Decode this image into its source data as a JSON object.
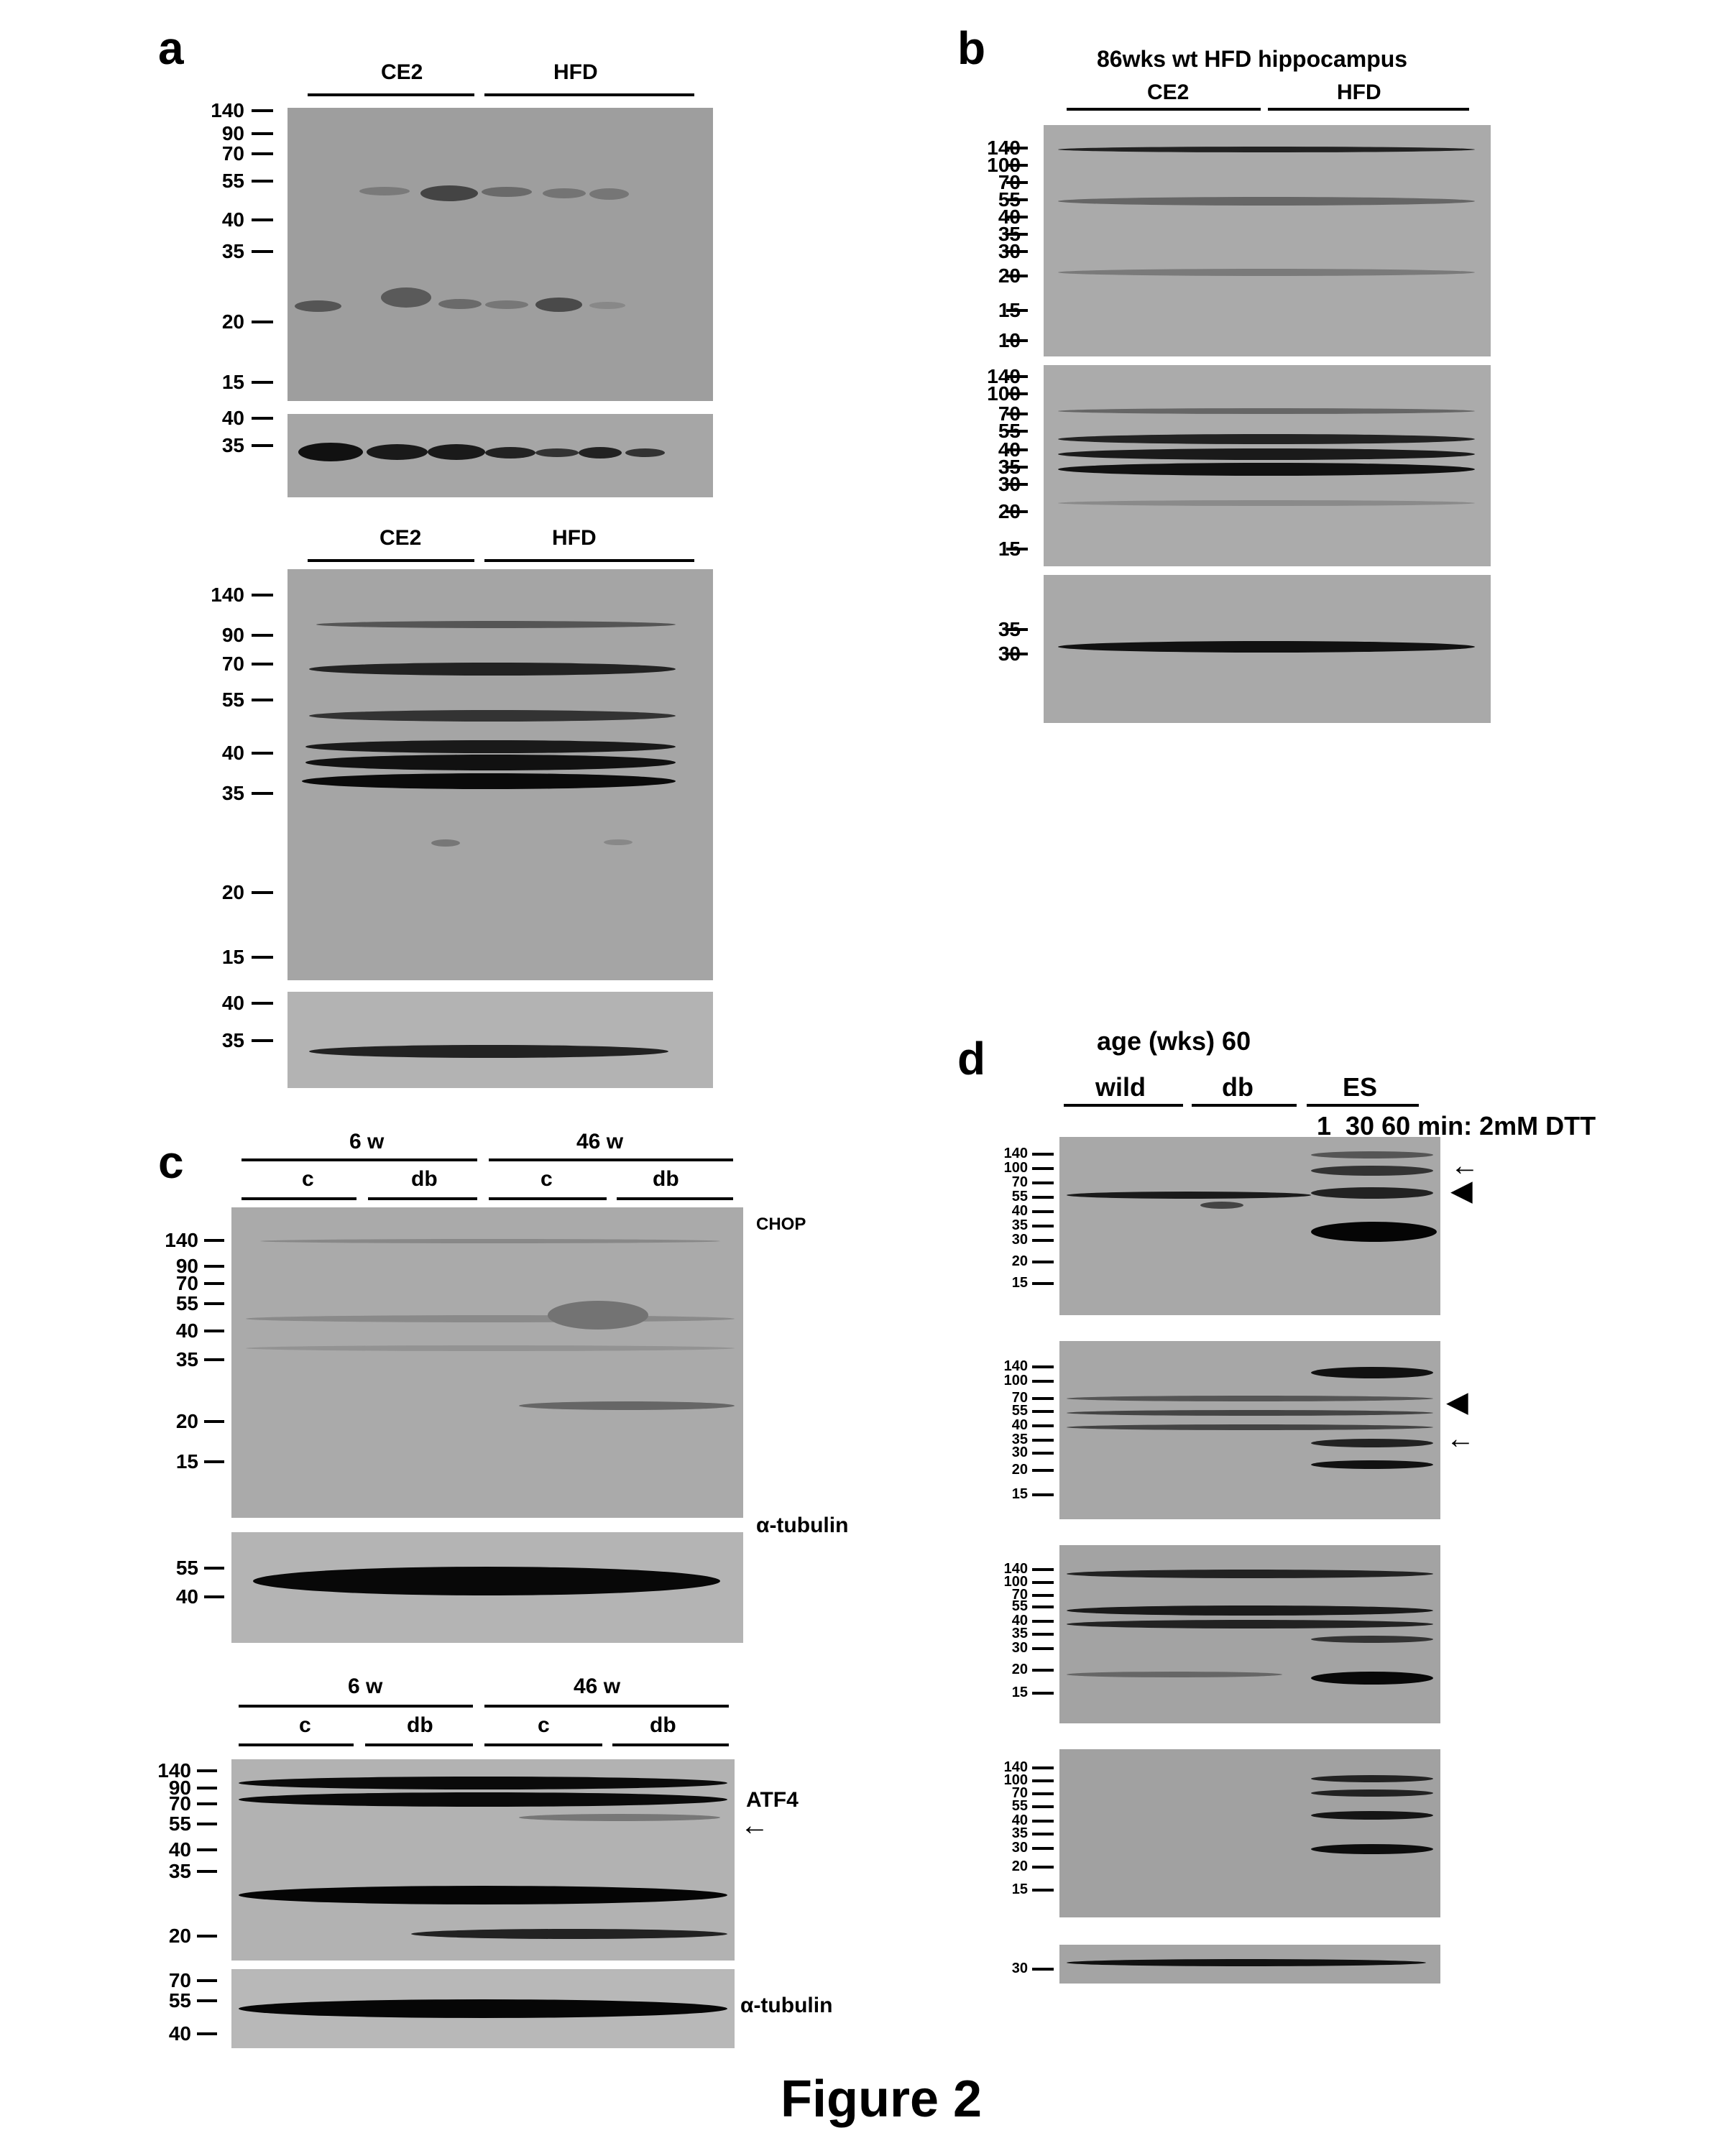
{
  "figure_title": "Figure 2",
  "panel_a": {
    "letter": "a",
    "group1": "CE2",
    "group2": "HFD",
    "blot1_markers": [
      "140",
      "90",
      "70",
      "55",
      "40",
      "35",
      "20",
      "15"
    ],
    "blot2_markers": [
      "40",
      "35"
    ],
    "blot3_markers": [
      "140",
      "90",
      "70",
      "55",
      "40",
      "35",
      "20",
      "15"
    ],
    "blot4_markers": [
      "40",
      "35"
    ]
  },
  "panel_b": {
    "letter": "b",
    "title": "86wks wt HFD hippocampus",
    "group1": "CE2",
    "group2": "HFD",
    "blot1_markers": [
      "140",
      "100",
      "70",
      "55",
      "40",
      "35",
      "30",
      "20",
      "15",
      "10"
    ],
    "blot2_markers": [
      "140",
      "100",
      "70",
      "55",
      "40",
      "35",
      "30",
      "20",
      "15"
    ],
    "blot3_markers": [
      "35",
      "30"
    ]
  },
  "panel_c": {
    "letter": "c",
    "age1": "6 w",
    "age2": "46 w",
    "sub_c": "c",
    "sub_db": "db",
    "label_chop": "CHOP",
    "label_tubulin": "α-tubulin",
    "label_atf4": "ATF4",
    "blot1_markers": [
      "140",
      "90",
      "70",
      "55",
      "40",
      "35",
      "20",
      "15"
    ],
    "blot2_markers": [
      "55",
      "40"
    ],
    "blot3_markers": [
      "140",
      "90",
      "70",
      "55",
      "40",
      "35",
      "20"
    ],
    "blot4_markers": [
      "70",
      "55",
      "40"
    ]
  },
  "panel_d": {
    "letter": "d",
    "age_label": "age (wks) 60",
    "group1": "wild",
    "group2": "db",
    "group3": "ES",
    "treatment": "1  30 60 min: 2mM DTT",
    "blot_markers": [
      "140",
      "100",
      "70",
      "55",
      "40",
      "35",
      "30",
      "20",
      "15"
    ],
    "blot5_markers": [
      "30"
    ]
  }
}
